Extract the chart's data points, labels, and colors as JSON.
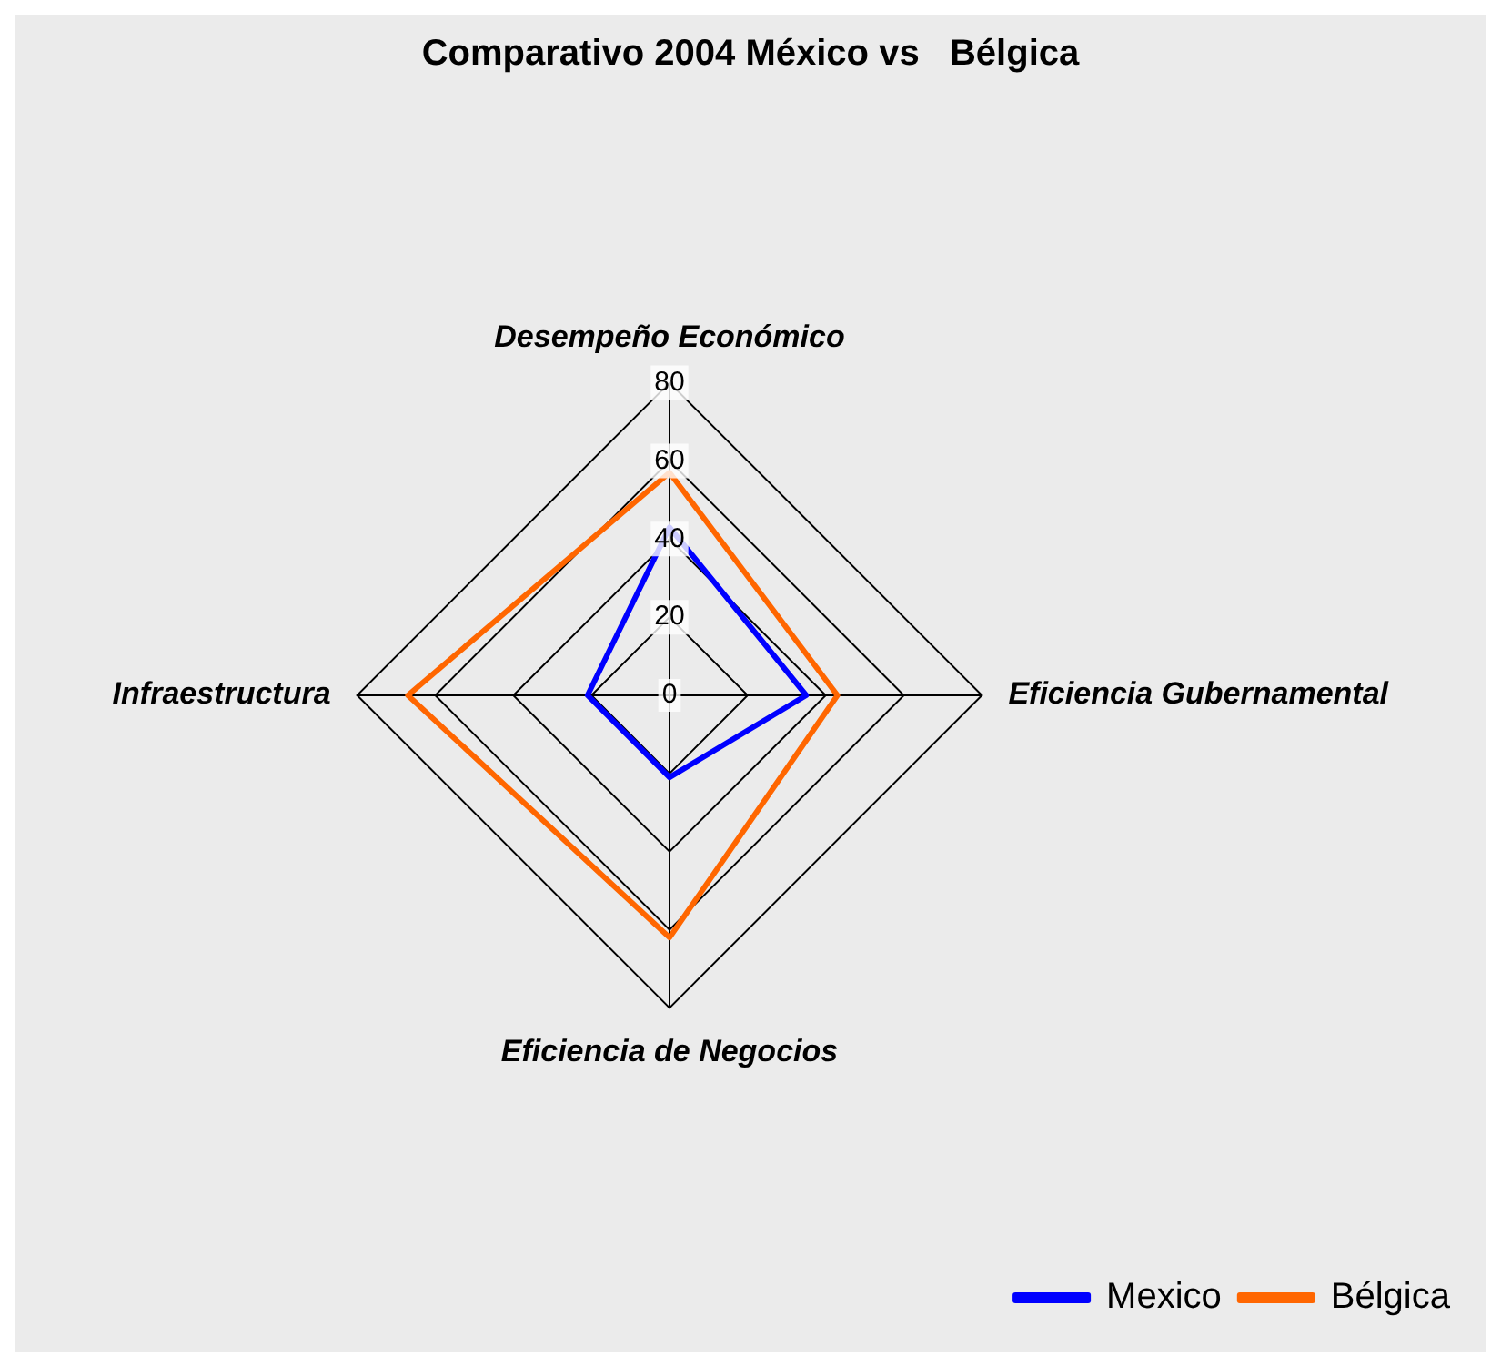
{
  "chart_data": {
    "type": "radar",
    "title": "Comparativo 2004 México vs   Bélgica",
    "categories": [
      "Desempeño Económico",
      "Eficiencia Gubernamental",
      "Eficiencia de Negocios",
      "Infraestructura"
    ],
    "series": [
      {
        "name": "Mexico",
        "color": "#0000ff",
        "values": [
          43,
          35,
          21,
          21
        ]
      },
      {
        "name": "Bélgica",
        "color": "#ff6600",
        "values": [
          57,
          43,
          62,
          67
        ]
      }
    ],
    "ylim": [
      0,
      80
    ],
    "yticks": [
      0,
      20,
      40,
      60,
      80
    ],
    "grid": true,
    "legend": "bottom right",
    "marker": "none"
  }
}
